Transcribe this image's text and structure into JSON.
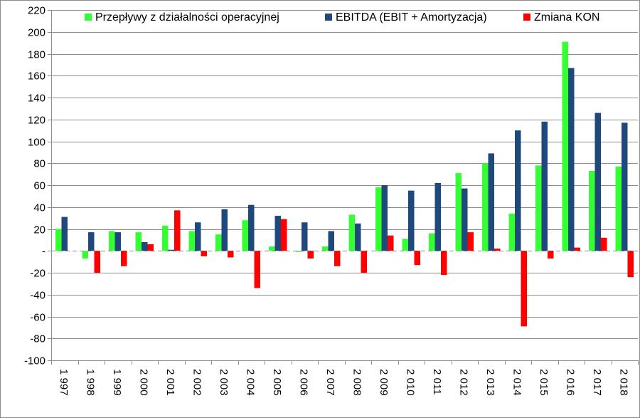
{
  "chart_data": {
    "type": "bar",
    "title": "",
    "xlabel": "",
    "ylabel": "",
    "ylim": [
      -100,
      220
    ],
    "y_ticks": [
      -100,
      -80,
      -60,
      -40,
      -20,
      0,
      20,
      40,
      60,
      80,
      100,
      120,
      140,
      160,
      180,
      200,
      220
    ],
    "y_tick_labels": [
      "-100",
      "-80",
      "-60",
      "-40",
      "-20",
      "-",
      "20",
      "40",
      "60",
      "80",
      "100",
      "120",
      "140",
      "160",
      "180",
      "200",
      "220"
    ],
    "grid": "horizontal",
    "legend_position": "top",
    "categories": [
      "1 997",
      "1 998",
      "1 999",
      "2 000",
      "2 001",
      "2 002",
      "2 003",
      "2 004",
      "2 005",
      "2 006",
      "2 007",
      "2 008",
      "2 009",
      "2 010",
      "2 011",
      "2 012",
      "2 013",
      "2 014",
      "2 015",
      "2 016",
      "2 017",
      "2 018"
    ],
    "series": [
      {
        "name": "Przepływy z działalności operacyjnej",
        "color": "#33ff33",
        "values": [
          20,
          -7,
          18,
          17,
          23,
          18,
          15,
          28,
          4,
          -1,
          4,
          33,
          58,
          11,
          16,
          71,
          80,
          34,
          78,
          191,
          73,
          77
        ]
      },
      {
        "name": "EBITDA (EBIT + Amortyzacja)",
        "color": "#1f497d",
        "values": [
          31,
          17,
          17,
          8,
          1,
          26,
          38,
          42,
          32,
          26,
          18,
          25,
          60,
          55,
          62,
          57,
          89,
          110,
          118,
          167,
          126,
          117
        ]
      },
      {
        "name": "Zmiana KON",
        "color": "#ff0000",
        "values": [
          0,
          -20,
          -14,
          6,
          37,
          -5,
          -6,
          -34,
          29,
          -7,
          -14,
          -20,
          14,
          -13,
          -22,
          17,
          2,
          -69,
          -7,
          3,
          12,
          -24
        ]
      }
    ]
  }
}
